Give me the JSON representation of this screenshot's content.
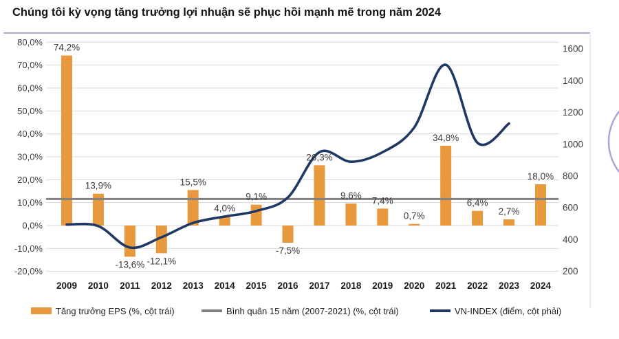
{
  "title": "Chúng tôi kỳ vọng tăng trưởng lợi nhuận sẽ phục hồi mạnh mẽ trong năm 2024",
  "colors": {
    "bar_orange": "#E8993E",
    "vnindex_navy": "#1F3864",
    "average_gray": "#808080",
    "gridline": "#D9D9D9",
    "top_border_lavender": "#A9A9D6",
    "side_border": "#E4E4EE",
    "decor_circle": "#A9A5D5",
    "axis_text": "#3D3D3D",
    "data_label_text": "#3A3A3A",
    "year_text": "#1A1A1A"
  },
  "chart_data": {
    "type": "combo-bar-line",
    "title": "Chúng tôi kỳ vọng tăng trưởng lợi nhuận sẽ phục hồi mạnh mẽ trong năm 2024",
    "categories": [
      "2009",
      "2010",
      "2011",
      "2012",
      "2013",
      "2014",
      "2015",
      "2016",
      "2017",
      "2018",
      "2019",
      "2020",
      "2021",
      "2022",
      "2023",
      "2024"
    ],
    "series": [
      {
        "name": "Tăng trưởng EPS (%, cột trái)",
        "type": "bar",
        "axis": "left",
        "values": [
          74.2,
          13.9,
          -13.6,
          -12.1,
          15.5,
          4.0,
          9.1,
          -7.5,
          26.3,
          9.6,
          7.4,
          0.7,
          34.8,
          6.4,
          2.7,
          18.0
        ],
        "labels": [
          "74,2%",
          "13,9%",
          "-13,6%",
          "-12,1%",
          "15,5%",
          "4,0%",
          "9,1%",
          "-7,5%",
          "26,3%",
          "9,6%",
          "7,4%",
          "0,7%",
          "34,8%",
          "6,4%",
          "2,7%",
          "18,0%"
        ]
      },
      {
        "name": "Bình quân 15 năm (2007-2021) (%, cột trái)",
        "type": "line-constant",
        "axis": "left",
        "constant_value": 11.6
      },
      {
        "name": "VN-INDEX (điểm, cột phải)",
        "type": "line-smooth",
        "axis": "right",
        "values": [
          495,
          485,
          350,
          415,
          505,
          545,
          580,
          665,
          950,
          890,
          950,
          1105,
          1500,
          1010,
          1130,
          null
        ]
      }
    ],
    "left_axis": {
      "min": -20,
      "max": 80,
      "step": 10,
      "tick_labels": [
        "80,0%",
        "70,0%",
        "60,0%",
        "50,0%",
        "40,0%",
        "30,0%",
        "20,0%",
        "10,0%",
        "0,0%",
        "-10,0%",
        "-20,0%"
      ],
      "tick_values": [
        80,
        70,
        60,
        50,
        40,
        30,
        20,
        10,
        0,
        -10,
        -20
      ]
    },
    "right_axis": {
      "min": 200,
      "max": 1600,
      "step": 200,
      "tick_labels": [
        "1600",
        "1400",
        "1200",
        "1000",
        "800",
        "600",
        "400",
        "200"
      ],
      "tick_values": [
        1600,
        1400,
        1200,
        1000,
        800,
        600,
        400,
        200
      ]
    },
    "grid": true,
    "legend_position": "bottom"
  },
  "legend": {
    "items": [
      {
        "label": "Tăng trưởng EPS (%, cột trái)",
        "swatch": "bar",
        "color": "#E8993E"
      },
      {
        "label": "Bình quân 15 năm (2007-2021) (%, cột trái)",
        "swatch": "line",
        "color": "#808080"
      },
      {
        "label": "VN-INDEX (điểm, cột phải)",
        "swatch": "line",
        "color": "#1F3864"
      }
    ]
  }
}
